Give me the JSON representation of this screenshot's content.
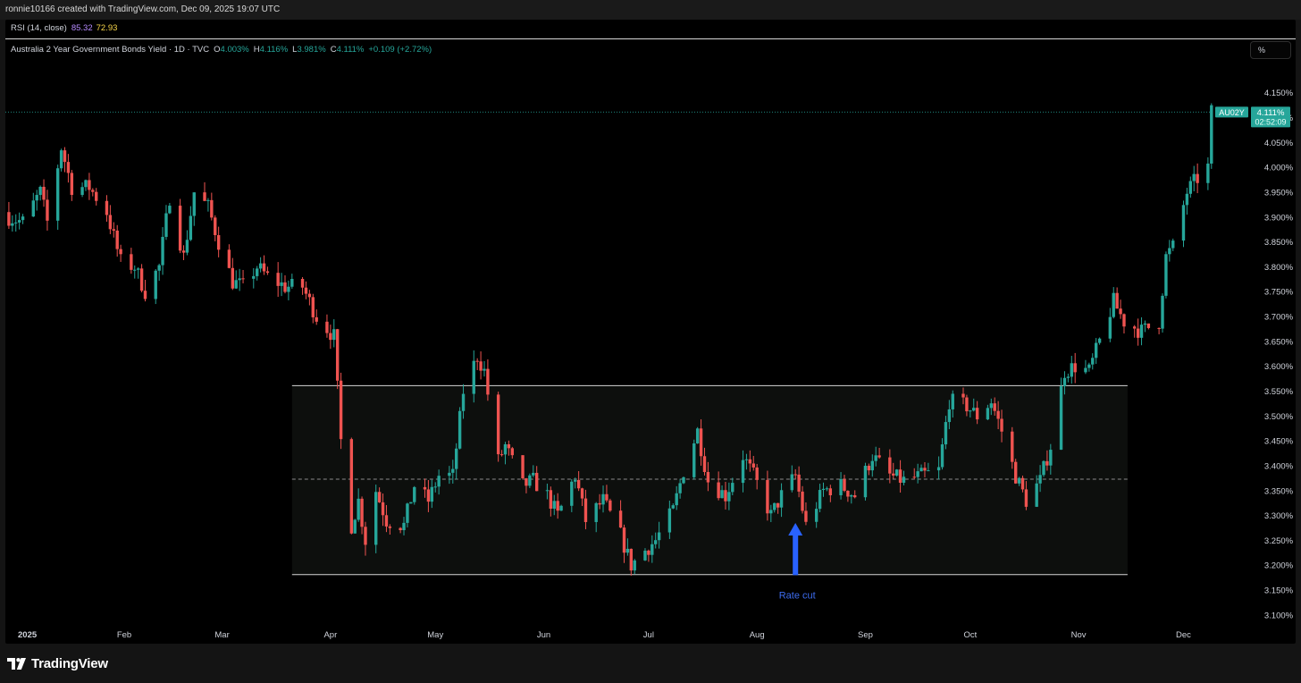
{
  "header": {
    "attribution": "ronnie10166 created with TradingView.com, Dec 09, 2025 19:07 UTC"
  },
  "indicator": {
    "label": "RSI (14, close)",
    "value1": "85.32",
    "value2": "72.93"
  },
  "legend": {
    "title": "Australia 2 Year Government Bonds Yield · 1D · TVC",
    "open_key": "O",
    "open": "4.003%",
    "high_key": "H",
    "high": "4.116%",
    "low_key": "L",
    "low": "3.981%",
    "close_key": "C",
    "close": "4.111%",
    "change": "+0.109 (+2.72%)"
  },
  "scale_button": {
    "label": "%"
  },
  "price_tag": {
    "symbol": "AU02Y",
    "price": "4.111%",
    "countdown": "02:52:09"
  },
  "footer": {
    "brand": "TradingView"
  },
  "colors": {
    "up": "#26a69a",
    "down": "#ef5350",
    "arrow": "#2962ff",
    "background": "#000000"
  },
  "chart_data": {
    "type": "candlestick",
    "y_ticks": [
      "4.150%",
      "4.100%",
      "4.050%",
      "4.000%",
      "3.950%",
      "3.900%",
      "3.850%",
      "3.800%",
      "3.750%",
      "3.700%",
      "3.650%",
      "3.600%",
      "3.550%",
      "3.500%",
      "3.450%",
      "3.400%",
      "3.350%",
      "3.300%",
      "3.250%",
      "3.200%",
      "3.150%",
      "3.100%"
    ],
    "ylim": [
      3.08,
      4.18
    ],
    "x_ticks": [
      {
        "label": "2025",
        "date": "2025-01-01",
        "bold": true
      },
      {
        "label": "Feb",
        "date": "2025-02-01"
      },
      {
        "label": "Mar",
        "date": "2025-03-01"
      },
      {
        "label": "Apr",
        "date": "2025-04-01"
      },
      {
        "label": "May",
        "date": "2025-05-01"
      },
      {
        "label": "Jun",
        "date": "2025-06-01"
      },
      {
        "label": "Jul",
        "date": "2025-07-01"
      },
      {
        "label": "Aug",
        "date": "2025-08-01"
      },
      {
        "label": "Sep",
        "date": "2025-09-01"
      },
      {
        "label": "Oct",
        "date": "2025-10-01"
      },
      {
        "label": "Nov",
        "date": "2025-11-01"
      },
      {
        "label": "Dec",
        "date": "2025-12-01"
      }
    ],
    "xlim": [
      "2024-12-29",
      "2025-12-18"
    ],
    "close_series": [
      [
        "2024-12-30",
        3.9
      ],
      [
        "2025-01-03",
        3.89
      ],
      [
        "2025-01-08",
        3.95
      ],
      [
        "2025-01-10",
        3.89
      ],
      [
        "2025-01-14",
        4.04
      ],
      [
        "2025-01-17",
        3.96
      ],
      [
        "2025-01-22",
        3.96
      ],
      [
        "2025-01-27",
        3.91
      ],
      [
        "2025-01-31",
        3.81
      ],
      [
        "2025-02-04",
        3.8
      ],
      [
        "2025-02-07",
        3.75
      ],
      [
        "2025-02-11",
        3.8
      ],
      [
        "2025-02-14",
        3.94
      ],
      [
        "2025-02-18",
        3.82
      ],
      [
        "2025-02-21",
        3.95
      ],
      [
        "2025-02-25",
        3.92
      ],
      [
        "2025-02-28",
        3.85
      ],
      [
        "2025-03-04",
        3.77
      ],
      [
        "2025-03-07",
        3.76
      ],
      [
        "2025-03-11",
        3.8
      ],
      [
        "2025-03-14",
        3.78
      ],
      [
        "2025-03-19",
        3.76
      ],
      [
        "2025-03-24",
        3.76
      ],
      [
        "2025-03-28",
        3.7
      ],
      [
        "2025-04-02",
        3.66
      ],
      [
        "2025-04-04",
        3.45
      ],
      [
        "2025-04-07",
        3.28
      ],
      [
        "2025-04-09",
        3.33
      ],
      [
        "2025-04-11",
        3.25
      ],
      [
        "2025-04-14",
        3.35
      ],
      [
        "2025-04-17",
        3.29
      ],
      [
        "2025-04-22",
        3.28
      ],
      [
        "2025-04-25",
        3.36
      ],
      [
        "2025-04-29",
        3.33
      ],
      [
        "2025-05-02",
        3.38
      ],
      [
        "2025-05-06",
        3.38
      ],
      [
        "2025-05-09",
        3.55
      ],
      [
        "2025-05-13",
        3.62
      ],
      [
        "2025-05-15",
        3.59
      ],
      [
        "2025-05-19",
        3.41
      ],
      [
        "2025-05-21",
        3.44
      ],
      [
        "2025-05-26",
        3.36
      ],
      [
        "2025-05-29",
        3.37
      ],
      [
        "2025-06-02",
        3.34
      ],
      [
        "2025-06-05",
        3.3
      ],
      [
        "2025-06-10",
        3.38
      ],
      [
        "2025-06-13",
        3.29
      ],
      [
        "2025-06-18",
        3.33
      ],
      [
        "2025-06-23",
        3.26
      ],
      [
        "2025-06-26",
        3.2
      ],
      [
        "2025-06-30",
        3.23
      ],
      [
        "2025-07-03",
        3.25
      ],
      [
        "2025-07-08",
        3.31
      ],
      [
        "2025-07-11",
        3.39
      ],
      [
        "2025-07-15",
        3.47
      ],
      [
        "2025-07-18",
        3.37
      ],
      [
        "2025-07-23",
        3.34
      ],
      [
        "2025-07-28",
        3.42
      ],
      [
        "2025-07-31",
        3.38
      ],
      [
        "2025-08-05",
        3.3
      ],
      [
        "2025-08-08",
        3.34
      ],
      [
        "2025-08-12",
        3.38
      ],
      [
        "2025-08-15",
        3.28
      ],
      [
        "2025-08-20",
        3.35
      ],
      [
        "2025-08-25",
        3.36
      ],
      [
        "2025-08-29",
        3.34
      ],
      [
        "2025-09-03",
        3.42
      ],
      [
        "2025-09-08",
        3.38
      ],
      [
        "2025-09-12",
        3.37
      ],
      [
        "2025-09-17",
        3.38
      ],
      [
        "2025-09-22",
        3.39
      ],
      [
        "2025-09-25",
        3.53
      ],
      [
        "2025-09-30",
        3.52
      ],
      [
        "2025-10-03",
        3.5
      ],
      [
        "2025-10-07",
        3.53
      ],
      [
        "2025-10-10",
        3.47
      ],
      [
        "2025-10-14",
        3.38
      ],
      [
        "2025-10-17",
        3.33
      ],
      [
        "2025-10-21",
        3.37
      ],
      [
        "2025-10-24",
        3.44
      ],
      [
        "2025-10-28",
        3.59
      ],
      [
        "2025-10-31",
        3.6
      ],
      [
        "2025-11-04",
        3.59
      ],
      [
        "2025-11-07",
        3.65
      ],
      [
        "2025-11-11",
        3.73
      ],
      [
        "2025-11-14",
        3.69
      ],
      [
        "2025-11-19",
        3.67
      ],
      [
        "2025-11-24",
        3.69
      ],
      [
        "2025-11-26",
        3.82
      ],
      [
        "2025-11-28",
        3.84
      ],
      [
        "2025-12-02",
        3.95
      ],
      [
        "2025-12-04",
        3.97
      ],
      [
        "2025-12-08",
        4.0
      ],
      [
        "2025-12-09",
        4.111
      ]
    ],
    "range_box": {
      "top": 3.561,
      "bottom": 3.181,
      "mid": 3.373,
      "start_date": "2025-03-21",
      "end_date": "2025-11-15"
    },
    "last_price_line": 4.111,
    "annotation": {
      "text": "Rate cut",
      "date": "2025-08-12",
      "arrow_top": 3.285,
      "arrow_bottom": 3.18
    }
  }
}
